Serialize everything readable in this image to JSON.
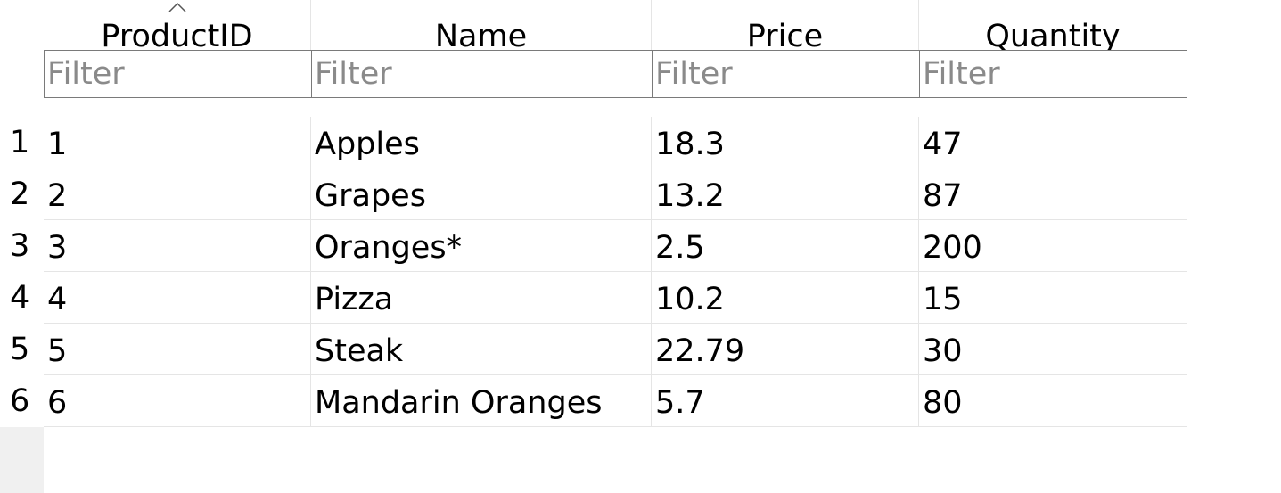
{
  "columns": [
    {
      "label": "ProductID",
      "filter_placeholder": "Filter",
      "sorted": "ascending"
    },
    {
      "label": "Name",
      "filter_placeholder": "Filter"
    },
    {
      "label": "Price",
      "filter_placeholder": "Filter"
    },
    {
      "label": "Quantity",
      "filter_placeholder": "Filter"
    }
  ],
  "rows": [
    {
      "num": "1",
      "cells": [
        "1",
        "Apples",
        "18.3",
        "47"
      ]
    },
    {
      "num": "2",
      "cells": [
        "2",
        "Grapes",
        "13.2",
        "87"
      ]
    },
    {
      "num": "3",
      "cells": [
        "3",
        "Oranges*",
        "2.5",
        "200"
      ]
    },
    {
      "num": "4",
      "cells": [
        "4",
        "Pizza",
        "10.2",
        "15"
      ]
    },
    {
      "num": "5",
      "cells": [
        "5",
        "Steak",
        "22.79",
        "30"
      ]
    },
    {
      "num": "6",
      "cells": [
        "6",
        "Mandarin Oranges",
        "5.7",
        "80"
      ]
    }
  ],
  "colors": {
    "gridline": "#e5e5e5",
    "filter_border": "#7a7a7a",
    "placeholder": "#8a8a8a",
    "gutter_empty": "#f0f0f0"
  },
  "icons": {
    "sort": "chevron-up-icon"
  }
}
